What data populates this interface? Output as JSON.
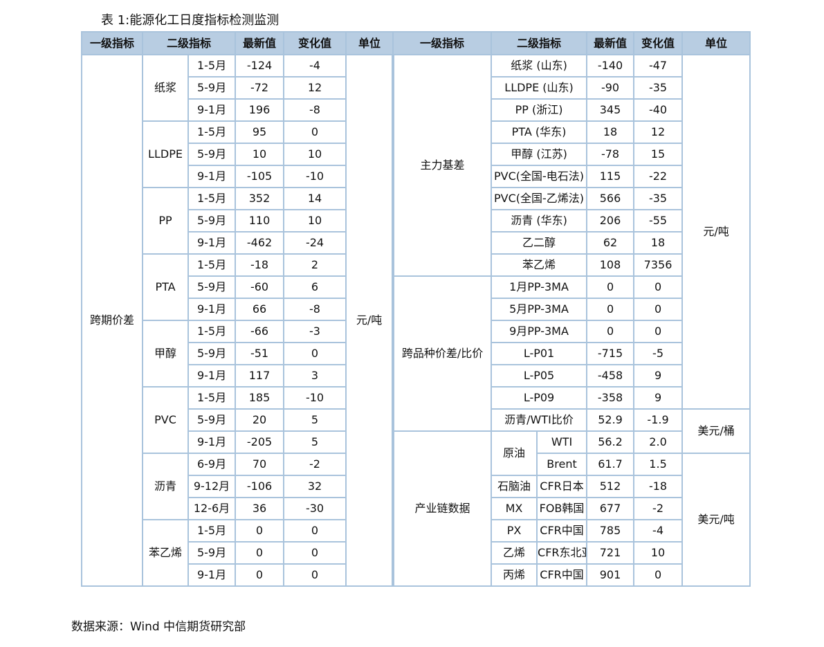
{
  "title": "表 1:能源化工日度指标检测监测",
  "source": "数据来源：Wind  中信期货研究部",
  "headers": {
    "left": [
      "一级指标",
      "二级指标",
      "最新值",
      "变化值",
      "单位"
    ],
    "right": [
      "一级指标",
      "二级指标",
      "最新值",
      "变化值",
      "单位"
    ]
  },
  "left": {
    "level1": "跨期价差",
    "unit": "元/吨",
    "groups": [
      {
        "name": "纸浆",
        "rows": [
          {
            "period": "1-5月",
            "latest": "-124",
            "change": "-4"
          },
          {
            "period": "5-9月",
            "latest": "-72",
            "change": "12"
          },
          {
            "period": "9-1月",
            "latest": "196",
            "change": "-8"
          }
        ]
      },
      {
        "name": "LLDPE",
        "rows": [
          {
            "period": "1-5月",
            "latest": "95",
            "change": "0"
          },
          {
            "period": "5-9月",
            "latest": "10",
            "change": "10"
          },
          {
            "period": "9-1月",
            "latest": "-105",
            "change": "-10"
          }
        ]
      },
      {
        "name": "PP",
        "rows": [
          {
            "period": "1-5月",
            "latest": "352",
            "change": "14"
          },
          {
            "period": "5-9月",
            "latest": "110",
            "change": "10"
          },
          {
            "period": "9-1月",
            "latest": "-462",
            "change": "-24"
          }
        ]
      },
      {
        "name": "PTA",
        "rows": [
          {
            "period": "1-5月",
            "latest": "-18",
            "change": "2"
          },
          {
            "period": "5-9月",
            "latest": "-60",
            "change": "6"
          },
          {
            "period": "9-1月",
            "latest": "66",
            "change": "-8"
          }
        ]
      },
      {
        "name": "甲醇",
        "rows": [
          {
            "period": "1-5月",
            "latest": "-66",
            "change": "-3"
          },
          {
            "period": "5-9月",
            "latest": "-51",
            "change": "0"
          },
          {
            "period": "9-1月",
            "latest": "117",
            "change": "3"
          }
        ]
      },
      {
        "name": "PVC",
        "rows": [
          {
            "period": "1-5月",
            "latest": "185",
            "change": "-10"
          },
          {
            "period": "5-9月",
            "latest": "20",
            "change": "5"
          },
          {
            "period": "9-1月",
            "latest": "-205",
            "change": "5"
          }
        ]
      },
      {
        "name": "沥青",
        "rows": [
          {
            "period": "6-9月",
            "latest": "70",
            "change": "-2"
          },
          {
            "period": "9-12月",
            "latest": "-106",
            "change": "32"
          },
          {
            "period": "12-6月",
            "latest": "36",
            "change": "-30"
          }
        ]
      },
      {
        "name": "苯乙烯",
        "rows": [
          {
            "period": "1-5月",
            "latest": "0",
            "change": "0"
          },
          {
            "period": "5-9月",
            "latest": "0",
            "change": "0"
          },
          {
            "period": "9-1月",
            "latest": "0",
            "change": "0"
          }
        ]
      }
    ]
  },
  "right": {
    "basis": {
      "level1": "主力基差",
      "rows": [
        {
          "name": "纸浆 (山东)",
          "latest": "-140",
          "change": "-47"
        },
        {
          "name": "LLDPE (山东)",
          "latest": "-90",
          "change": "-35"
        },
        {
          "name": "PP (浙江)",
          "latest": "345",
          "change": "-40"
        },
        {
          "name": "PTA (华东)",
          "latest": "18",
          "change": "12"
        },
        {
          "name": "甲醇 (江苏)",
          "latest": "-78",
          "change": "15"
        },
        {
          "name": "PVC(全国-电石法)",
          "latest": "115",
          "change": "-22"
        },
        {
          "name": "PVC(全国-乙烯法)",
          "latest": "566",
          "change": "-35"
        },
        {
          "name": "沥青 (华东)",
          "latest": "206",
          "change": "-55"
        },
        {
          "name": "乙二醇",
          "latest": "62",
          "change": "18"
        },
        {
          "name": "苯乙烯",
          "latest": "108",
          "change": "7356"
        }
      ]
    },
    "cross": {
      "level1": "跨品种价差/比价",
      "rows": [
        {
          "name": "1月PP-3MA",
          "latest": "0",
          "change": "0"
        },
        {
          "name": "5月PP-3MA",
          "latest": "0",
          "change": "0"
        },
        {
          "name": "9月PP-3MA",
          "latest": "0",
          "change": "0"
        },
        {
          "name": "L-P01",
          "latest": "-715",
          "change": "-5"
        },
        {
          "name": "L-P05",
          "latest": "-458",
          "change": "9"
        },
        {
          "name": "L-P09",
          "latest": "-358",
          "change": "9"
        },
        {
          "name": "沥青/WTI比价",
          "latest": "52.9",
          "change": "-1.9"
        }
      ]
    },
    "chain": {
      "level1": "产业链数据",
      "rows": [
        {
          "product": "原油",
          "market": "WTI",
          "latest": "56.2",
          "change": "2.0"
        },
        {
          "product": "原油",
          "market": "Brent",
          "latest": "61.7",
          "change": "1.5"
        },
        {
          "product": "石脑油",
          "market": "CFR日本",
          "latest": "512",
          "change": "-18"
        },
        {
          "product": "MX",
          "market": "FOB韩国",
          "latest": "677",
          "change": "-2"
        },
        {
          "product": "PX",
          "market": "CFR中国",
          "latest": "785",
          "change": "-4"
        },
        {
          "product": "乙烯",
          "market": "CFR东北亚",
          "latest": "721",
          "change": "10"
        },
        {
          "product": "丙烯",
          "market": "CFR中国",
          "latest": "901",
          "change": "0"
        }
      ]
    },
    "units": {
      "yuan_ton": "元/吨",
      "usd_barrel": "美元/桶",
      "usd_ton": "美元/吨"
    }
  }
}
